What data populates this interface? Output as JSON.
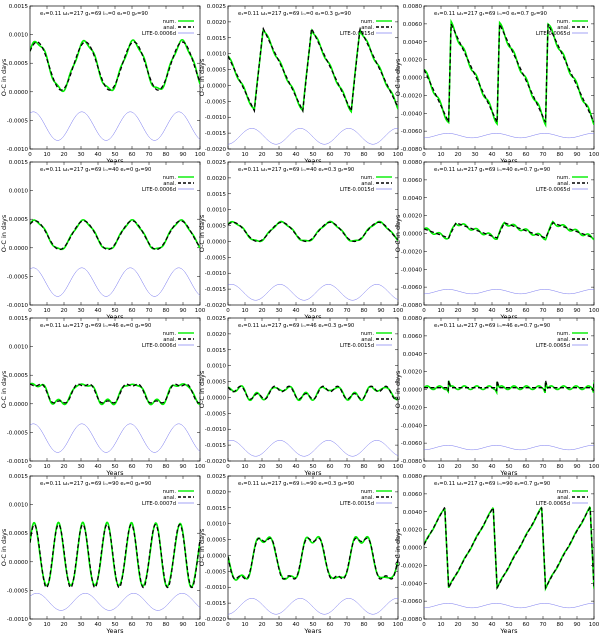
{
  "colors": {
    "num": "#00ee00",
    "anal": "#000000",
    "lite": "#6666ee"
  },
  "legend": {
    "num": "num.",
    "anal": "anal."
  },
  "chart_data": [
    {
      "type": "line",
      "title": "e₁=0.11 ω₁=217 g₁=69 iₘ=0 e₂=0 g₂=90",
      "xlabel": "Years",
      "ylabel": "O-C in days",
      "xlim": [
        0,
        100
      ],
      "ylim": [
        -0.001,
        0.0015
      ],
      "xticks": [
        0,
        10,
        20,
        30,
        40,
        50,
        60,
        70,
        80,
        90,
        100
      ],
      "yticks": [
        -0.001,
        -0.0005,
        0,
        0.0005,
        0.001,
        0.0015
      ],
      "ytick_labels": [
        "-0.0010",
        "-0.0005",
        "0.0000",
        "0.0005",
        "0.0010",
        "0.0015"
      ],
      "lite_label": "LITE-0.0006d",
      "model": {
        "kind": "sin",
        "amp": 0.00042,
        "offset": 0.00045,
        "period": 28.5,
        "phase": -3,
        "lite_off": -0.0006,
        "lite_amp": 0.00025,
        "lite_phase": 2,
        "num_var": 4e-05
      }
    },
    {
      "type": "line",
      "title": "e₁=0.11 ω₁=217 g₁=69 iₘ=0 e₂=0.3 g₂=90",
      "xlabel": "Years",
      "ylabel": "O-C in days",
      "xlim": [
        0,
        100
      ],
      "ylim": [
        -0.002,
        0.0025
      ],
      "xticks": [
        0,
        10,
        20,
        30,
        40,
        50,
        60,
        70,
        80,
        90,
        100
      ],
      "yticks": [
        -0.002,
        -0.0015,
        -0.001,
        -0.0005,
        0,
        0.0005,
        0.001,
        0.0015,
        0.002,
        0.0025
      ],
      "ytick_labels": [
        "-0.0020",
        "-0.0015",
        "-0.0010",
        "-0.0005",
        "0.0000",
        "0.0005",
        "0.0010",
        "0.0015",
        "0.0020",
        "0.0025"
      ],
      "lite_label": "LITE-0.0015d",
      "model": {
        "kind": "saw",
        "low": -0.0008,
        "high": 0.0018,
        "period": 28.5,
        "phase": -13,
        "rise": 0.18,
        "lite_off": -0.0016,
        "lite_amp": 0.00025,
        "lite_phase": 14,
        "num_var": 6e-05
      }
    },
    {
      "type": "line",
      "title": "e₁=0.11 ω₁=217 g₁=69 iₘ=0 e₂=0.7 g₂=90",
      "xlabel": "Years",
      "ylabel": "O-C in days",
      "xlim": [
        0,
        100
      ],
      "ylim": [
        -0.008,
        0.008
      ],
      "xticks": [
        0,
        10,
        20,
        30,
        40,
        50,
        60,
        70,
        80,
        90,
        100
      ],
      "yticks": [
        -0.008,
        -0.006,
        -0.004,
        -0.002,
        0,
        0.002,
        0.004,
        0.006,
        0.008
      ],
      "ytick_labels": [
        "-0.0080",
        "-0.0060",
        "-0.0040",
        "-0.0020",
        "0.0000",
        "0.0020",
        "0.0040",
        "0.0060",
        "0.0080"
      ],
      "lite_label": "LITE-0.0065d",
      "model": {
        "kind": "saw",
        "low": -0.005,
        "high": 0.006,
        "period": 28.5,
        "phase": -14,
        "rise": 0.05,
        "lite_off": -0.0065,
        "lite_amp": 0.00025,
        "lite_phase": 14,
        "num_var": 0.0003
      }
    },
    {
      "type": "line",
      "title": "e₁=0.11 ω₁=217 g₁=69 iₘ=40 e₂=0 g₂=90",
      "xlabel": "Years",
      "ylabel": "O-C in days",
      "xlim": [
        0,
        100
      ],
      "ylim": [
        -0.001,
        0.0015
      ],
      "xticks": [
        0,
        10,
        20,
        30,
        40,
        50,
        60,
        70,
        80,
        90,
        100
      ],
      "yticks": [
        -0.001,
        -0.0005,
        0,
        0.0005,
        0.001,
        0.0015
      ],
      "ytick_labels": [
        "-0.0010",
        "-0.0005",
        "0.0000",
        "0.0005",
        "0.0010",
        "0.0015"
      ],
      "lite_label": "LITE-0.0006d",
      "model": {
        "kind": "sin",
        "amp": 0.00025,
        "offset": 0.00022,
        "period": 28.5,
        "phase": -4,
        "lite_off": -0.0006,
        "lite_amp": 0.00025,
        "lite_phase": 2,
        "num_var": 2e-05
      }
    },
    {
      "type": "line",
      "title": "e₁=0.11 ω₁=217 g₁=69 iₘ=40 e₂=0.3 g₂=90",
      "xlabel": "Years",
      "ylabel": "O-C in days",
      "xlim": [
        0,
        100
      ],
      "ylim": [
        -0.002,
        0.0025
      ],
      "xticks": [
        0,
        10,
        20,
        30,
        40,
        50,
        60,
        70,
        80,
        90,
        100
      ],
      "yticks": [
        -0.002,
        -0.0015,
        -0.001,
        -0.0005,
        0,
        0.0005,
        0.001,
        0.0015,
        0.002,
        0.0025
      ],
      "ytick_labels": [
        "-0.0020",
        "-0.0015",
        "-0.0010",
        "-0.0005",
        "0.0000",
        "0.0005",
        "0.0010",
        "0.0015",
        "0.0020",
        "0.0025"
      ],
      "lite_label": "LITE-0.0015d",
      "model": {
        "kind": "sin",
        "amp": 0.0003,
        "offset": 0.0003,
        "period": 28.5,
        "phase": -4,
        "lite_off": -0.0016,
        "lite_amp": 0.00025,
        "lite_phase": 2,
        "num_var": 3e-05
      }
    },
    {
      "type": "line",
      "title": "e₁=0.11 ω₁=217 g₁=69 iₘ=40 e₂=0.7 g₂=90",
      "xlabel": "Years",
      "ylabel": "O-C in days",
      "xlim": [
        0,
        100
      ],
      "ylim": [
        -0.008,
        0.008
      ],
      "xticks": [
        0,
        10,
        20,
        30,
        40,
        50,
        60,
        70,
        80,
        90,
        100
      ],
      "yticks": [
        -0.008,
        -0.006,
        -0.004,
        -0.002,
        0,
        0.002,
        0.004,
        0.006,
        0.008
      ],
      "ytick_labels": [
        "-0.0080",
        "-0.0060",
        "-0.0040",
        "-0.0020",
        "0.0000",
        "0.0020",
        "0.0040",
        "0.0060",
        "0.0080"
      ],
      "lite_label": "LITE-0.0065d",
      "model": {
        "kind": "saw",
        "low": -0.0005,
        "high": 0.0012,
        "period": 28.5,
        "phase": -14,
        "rise": 0.15,
        "lite_off": -0.0065,
        "lite_amp": 0.00025,
        "lite_phase": 14,
        "num_var": 0.0002
      }
    },
    {
      "type": "line",
      "title": "e₁=0.11 ω₁=217 g₁=69 iₘ=46 e₂=0 g₂=90",
      "xlabel": "Years",
      "ylabel": "O-C in days",
      "xlim": [
        0,
        100
      ],
      "ylim": [
        -0.001,
        0.0015
      ],
      "xticks": [
        0,
        10,
        20,
        30,
        40,
        50,
        60,
        70,
        80,
        90,
        100
      ],
      "yticks": [
        -0.001,
        -0.0005,
        0,
        0.0005,
        0.001,
        0.0015
      ],
      "ytick_labels": [
        "-0.0010",
        "-0.0005",
        "0.0000",
        "0.0005",
        "0.0010",
        "0.0015"
      ],
      "lite_label": "LITE-0.0006d",
      "model": {
        "kind": "sin",
        "amp": 0.00018,
        "offset": 0.00018,
        "period": 28.5,
        "phase": -4,
        "lite_off": -0.0006,
        "lite_amp": 0.00025,
        "lite_phase": 2,
        "num_var": 3e-05,
        "harm": 5e-05
      }
    },
    {
      "type": "line",
      "title": "e₁=0.11 ω₁=217 g₁=69 iₘ=46 e₂=0.3 g₂=90",
      "xlabel": "Years",
      "ylabel": "O-C in days",
      "xlim": [
        0,
        100
      ],
      "ylim": [
        -0.002,
        0.0025
      ],
      "xticks": [
        0,
        10,
        20,
        30,
        40,
        50,
        60,
        70,
        80,
        90,
        100
      ],
      "yticks": [
        -0.002,
        -0.0015,
        -0.001,
        -0.0005,
        0,
        0.0005,
        0.001,
        0.0015,
        0.002,
        0.0025
      ],
      "ytick_labels": [
        "-0.0020",
        "-0.0015",
        "-0.0010",
        "-0.0005",
        "0.0000",
        "0.0005",
        "0.0010",
        "0.0015",
        "0.0020",
        "0.0025"
      ],
      "lite_label": "LITE-0.0015d",
      "model": {
        "kind": "sin",
        "amp": 0.00015,
        "offset": 0.00015,
        "period": 28.5,
        "phase": -4,
        "lite_off": -0.0016,
        "lite_amp": 0.00025,
        "lite_phase": 2,
        "num_var": 4e-05,
        "harm": 0.00012
      }
    },
    {
      "type": "line",
      "title": "e₁=0.11 ω₁=217 g₁=69 iₘ=46 e₂=0.7 g₂=90",
      "xlabel": "Years",
      "ylabel": "O-C in days",
      "xlim": [
        0,
        100
      ],
      "ylim": [
        -0.008,
        0.008
      ],
      "xticks": [
        0,
        10,
        20,
        30,
        40,
        50,
        60,
        70,
        80,
        90,
        100
      ],
      "yticks": [
        -0.008,
        -0.006,
        -0.004,
        -0.002,
        0,
        0.002,
        0.004,
        0.006,
        0.008
      ],
      "ytick_labels": [
        "-0.0080",
        "-0.0060",
        "-0.0040",
        "-0.0020",
        "0.0000",
        "0.0020",
        "0.0040",
        "0.0060",
        "0.0080"
      ],
      "lite_label": "LITE-0.0065d",
      "model": {
        "kind": "spike",
        "base": 0.0002,
        "amp": 0.0008,
        "period": 28.5,
        "phase": -14,
        "lite_off": -0.0065,
        "lite_amp": 0.00025,
        "lite_phase": 14,
        "num_var": 0.0002
      }
    },
    {
      "type": "line",
      "title": "e₁=0.11 ω₁=217 g₁=69 iₘ=90 e₂=0 g₂=90",
      "xlabel": "Years",
      "ylabel": "O-C in days",
      "xlim": [
        0,
        100
      ],
      "ylim": [
        -0.001,
        0.0015
      ],
      "xticks": [
        0,
        10,
        20,
        30,
        40,
        50,
        60,
        70,
        80,
        90,
        100
      ],
      "yticks": [
        -0.001,
        -0.0005,
        0,
        0.0005,
        0.001,
        0.0015
      ],
      "ytick_labels": [
        "-0.0010",
        "-0.0005",
        "0.0000",
        "0.0005",
        "0.0010",
        "0.0015"
      ],
      "lite_label": "LITE-0.0007d",
      "model": {
        "kind": "sin",
        "amp": 0.00055,
        "offset": 0.0001,
        "period": 14.25,
        "phase": -1,
        "lite_off": -0.0007,
        "lite_amp": 0.00015,
        "lite_phase": 4,
        "num_var": 4e-05,
        "lite_period": 28.5
      }
    },
    {
      "type": "line",
      "title": "e₁=0.11 ω₁=217 g₁=69 iₘ=90 e₂=0.3 g₂=90",
      "xlabel": "Years",
      "ylabel": "O-C in days",
      "xlim": [
        0,
        100
      ],
      "ylim": [
        -0.002,
        0.0025
      ],
      "xticks": [
        0,
        10,
        20,
        30,
        40,
        50,
        60,
        70,
        80,
        90,
        100
      ],
      "yticks": [
        -0.002,
        -0.0015,
        -0.001,
        -0.0005,
        0,
        0.0005,
        0.001,
        0.0015,
        0.002,
        0.0025
      ],
      "ytick_labels": [
        "-0.0020",
        "-0.0015",
        "-0.0010",
        "-0.0005",
        "0.0000",
        "0.0005",
        "0.0010",
        "0.0015",
        "0.0020",
        "0.0025"
      ],
      "lite_label": "LITE-0.0015d",
      "model": {
        "kind": "zig",
        "low": -0.001,
        "high": 0.0008,
        "period": 28.5,
        "phase": -14,
        "lite_off": -0.0016,
        "lite_amp": 0.00025,
        "lite_phase": 14,
        "num_var": 5e-05
      }
    },
    {
      "type": "line",
      "title": "e₁=0.11 ω₁=217 g₁=69 iₘ=90 e₂=0.7 g₂=90",
      "xlabel": "Years",
      "ylabel": "O-C in days",
      "xlim": [
        0,
        100
      ],
      "ylim": [
        -0.008,
        0.008
      ],
      "xticks": [
        0,
        10,
        20,
        30,
        40,
        50,
        60,
        70,
        80,
        90,
        100
      ],
      "yticks": [
        -0.008,
        -0.006,
        -0.004,
        -0.002,
        0,
        0.002,
        0.004,
        0.006,
        0.008
      ],
      "ytick_labels": [
        "-0.0080",
        "-0.0060",
        "-0.0040",
        "-0.0020",
        "0.0000",
        "0.0020",
        "0.0040",
        "0.0060",
        "0.0080"
      ],
      "lite_label": "LITE-0.0065d",
      "model": {
        "kind": "rise",
        "low": -0.0045,
        "high": 0.0045,
        "period": 28.5,
        "phase": -14,
        "lite_off": -0.0065,
        "lite_amp": 0.00025,
        "lite_phase": 14,
        "num_var": 0.0001
      }
    }
  ]
}
